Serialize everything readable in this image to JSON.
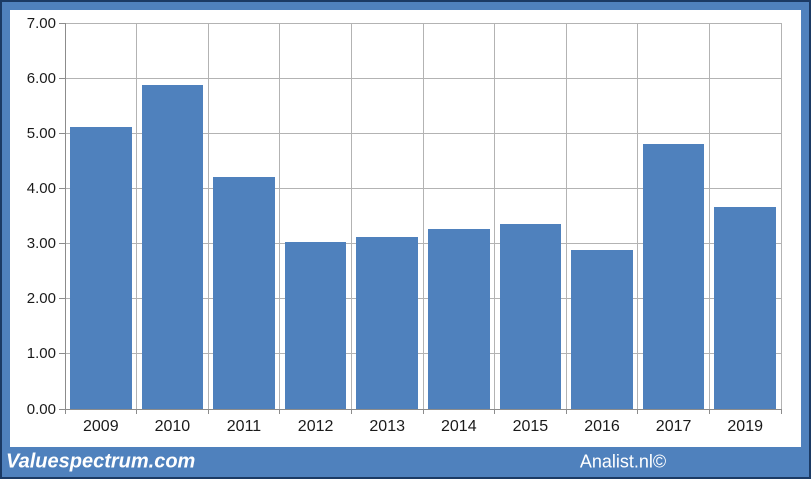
{
  "chart_data": {
    "type": "bar",
    "categories": [
      "2009",
      "2010",
      "2011",
      "2012",
      "2013",
      "2014",
      "2015",
      "2016",
      "2017",
      "2019"
    ],
    "values": [
      5.12,
      5.88,
      4.21,
      3.03,
      3.12,
      3.26,
      3.35,
      2.88,
      4.81,
      3.66
    ],
    "title": "",
    "xlabel": "",
    "ylabel": "",
    "ylim": [
      0,
      7
    ],
    "y_tick_step": 1,
    "y_tick_labels": [
      "0.00",
      "1.00",
      "2.00",
      "3.00",
      "4.00",
      "5.00",
      "6.00",
      "7.00"
    ],
    "grid": true,
    "vertical_category_gridlines": true,
    "legend_position": "none",
    "bar_color": "#4f81bd",
    "bar_width_fraction": 0.86
  },
  "footer": {
    "left_text": "Valuespectrum.com",
    "right_text": "Analist.nl©"
  },
  "colors": {
    "accent": "#4f81bd",
    "frame_outline": "#1b3a64",
    "gridline": "#b3b3b3",
    "axis": "#8c8c8c",
    "label_text": "#1a1a1a",
    "footer_text": "#ffffff"
  }
}
